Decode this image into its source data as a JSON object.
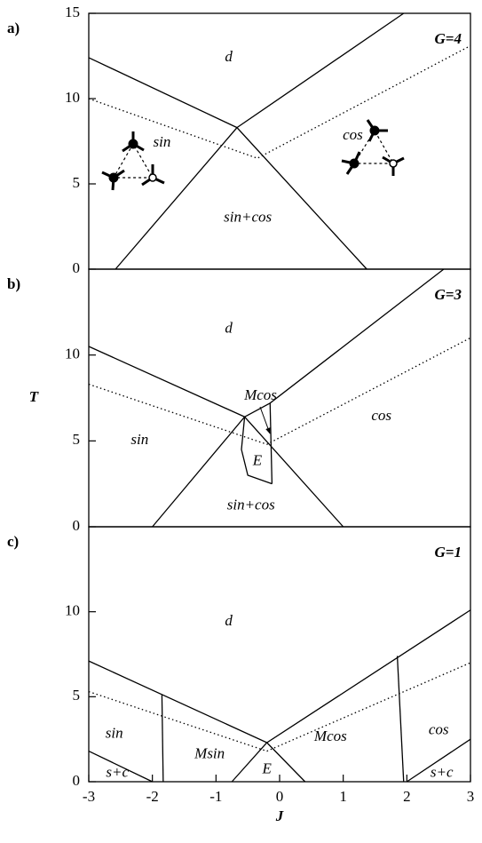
{
  "chart_data": [
    {
      "type": "line",
      "panel_label": "a)",
      "annotation": "G=4",
      "labels": [
        "d",
        "sin",
        "cos",
        "sin+cos"
      ],
      "xlim": [
        -3,
        3
      ],
      "ylim": [
        0,
        15
      ],
      "yticks": [
        0,
        5,
        10,
        15
      ],
      "series": [
        {
          "color": "#000000",
          "linestyle": "solid",
          "x": [
            -3,
            -0.67
          ],
          "values": [
            12.4,
            8.3
          ]
        },
        {
          "color": "#000000",
          "linestyle": "solid",
          "x": [
            -0.67,
            1.95
          ],
          "values": [
            8.3,
            15
          ]
        },
        {
          "color": "#000000",
          "linestyle": "solid",
          "x": [
            -2.58,
            -0.67,
            1.37
          ],
          "values": [
            0,
            8.3,
            0
          ]
        },
        {
          "color": "#000000",
          "linestyle": "dotted",
          "x": [
            -3,
            -0.35,
            3
          ],
          "values": [
            10,
            6.5,
            13.1
          ]
        }
      ]
    },
    {
      "type": "line",
      "panel_label": "b)",
      "annotation": "G=3",
      "ylabel": "T",
      "labels": [
        "d",
        "Mcos",
        "cos",
        "sin",
        "E",
        "sin+cos"
      ],
      "xlim": [
        -3,
        3
      ],
      "ylim": [
        0,
        15
      ],
      "yticks": [
        0,
        5,
        10
      ],
      "series": [
        {
          "color": "#000000",
          "linestyle": "solid",
          "x": [
            -3,
            -0.55
          ],
          "values": [
            10.5,
            6.4
          ]
        },
        {
          "color": "#000000",
          "linestyle": "solid",
          "x": [
            -0.55,
            -0.15,
            2.58
          ],
          "values": [
            6.4,
            7.2,
            15
          ]
        },
        {
          "color": "#000000",
          "linestyle": "solid",
          "x": [
            -2.0,
            -0.55,
            1.0
          ],
          "values": [
            0,
            6.4,
            0
          ]
        },
        {
          "color": "#000000",
          "linestyle": "solid",
          "x": [
            -0.15,
            -0.12
          ],
          "values": [
            7.2,
            2.5
          ]
        },
        {
          "color": "#000000",
          "linestyle": "solid",
          "x": [
            -0.55,
            -0.6,
            -0.5,
            -0.12
          ],
          "values": [
            6.4,
            4.5,
            3.0,
            2.5
          ]
        },
        {
          "color": "#000000",
          "linestyle": "dotted",
          "x": [
            -3,
            -0.2,
            3
          ],
          "values": [
            8.3,
            4.8,
            11.0
          ]
        }
      ]
    },
    {
      "type": "line",
      "panel_label": "c)",
      "annotation": "G=1",
      "xlabel": "J",
      "labels": [
        "d",
        "sin",
        "Msin",
        "E",
        "Mcos",
        "cos",
        "s+c",
        "s+c"
      ],
      "xlim": [
        -3,
        3
      ],
      "ylim": [
        0,
        15
      ],
      "yticks": [
        0,
        5,
        10
      ],
      "xticks": [
        -3,
        -2,
        -1,
        0,
        1,
        2,
        3
      ],
      "series": [
        {
          "color": "#000000",
          "linestyle": "solid",
          "x": [
            -3,
            -0.2,
            3
          ],
          "values": [
            7.1,
            2.3,
            10.1
          ]
        },
        {
          "color": "#000000",
          "linestyle": "solid",
          "x": [
            -0.75,
            -0.2,
            0.4
          ],
          "values": [
            0,
            2.3,
            0
          ]
        },
        {
          "color": "#000000",
          "linestyle": "solid",
          "x": [
            -1.85,
            -1.83
          ],
          "values": [
            5.1,
            0
          ]
        },
        {
          "color": "#000000",
          "linestyle": "solid",
          "x": [
            1.85,
            1.95
          ],
          "values": [
            7.4,
            0
          ]
        },
        {
          "color": "#000000",
          "linestyle": "solid",
          "x": [
            -3,
            -2.0
          ],
          "values": [
            1.8,
            0
          ]
        },
        {
          "color": "#000000",
          "linestyle": "solid",
          "x": [
            2.0,
            3
          ],
          "values": [
            0,
            2.5
          ]
        },
        {
          "color": "#000000",
          "linestyle": "dotted",
          "x": [
            -3,
            -0.2,
            3
          ],
          "values": [
            5.3,
            1.8,
            7.0
          ]
        }
      ]
    }
  ]
}
